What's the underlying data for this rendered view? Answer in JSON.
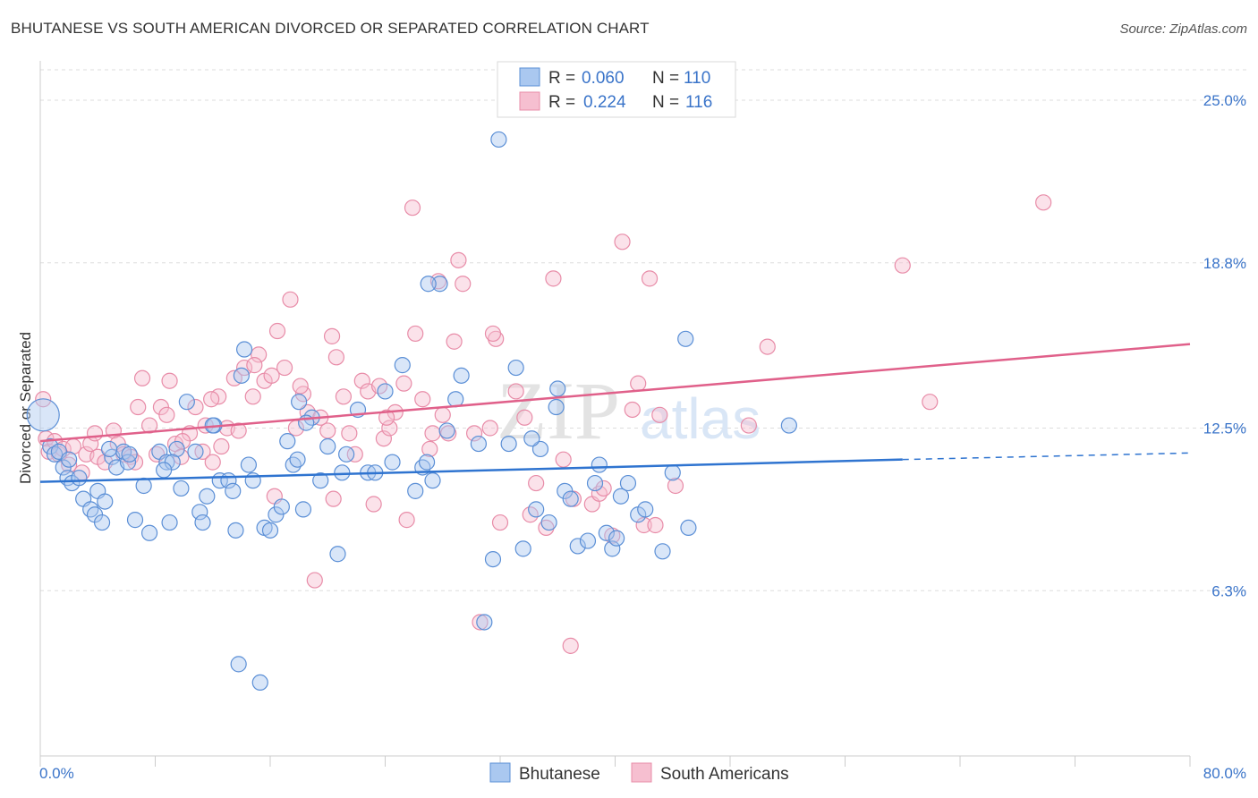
{
  "header": {
    "title": "BHUTANESE VS SOUTH AMERICAN DIVORCED OR SEPARATED CORRELATION CHART",
    "source": "Source: ZipAtlas.com"
  },
  "watermark": {
    "zip": "ZIP",
    "atlas": "atlas"
  },
  "colors": {
    "blue_fill": "#aac8f0",
    "blue_stroke": "#5b8fd6",
    "blue_line": "#2f74d0",
    "blue_text": "#3a74c9",
    "pink_fill": "#f6bfd0",
    "pink_stroke": "#e88ca8",
    "pink_line": "#e0608a",
    "axis_text": "#3a74c9",
    "grid": "#dddddd"
  },
  "stats": [
    {
      "r_label": "R =",
      "r_value": "0.060",
      "n_label": "N =",
      "n_value": "110"
    },
    {
      "r_label": "R =",
      "r_value": "0.224",
      "n_label": "N =",
      "n_value": "116"
    }
  ],
  "chart_data": {
    "type": "scatter",
    "title": "BHUTANESE VS SOUTH AMERICAN DIVORCED OR SEPARATED CORRELATION CHART",
    "xlabel": "",
    "ylabel": "Divorced or Separated",
    "xlim": [
      0,
      80
    ],
    "ylim": [
      0,
      26.5
    ],
    "x_tick_labels": [
      "0.0%",
      "80.0%"
    ],
    "y_ticks": [
      6.3,
      12.5,
      18.8,
      25.0
    ],
    "y_tick_labels": [
      "6.3%",
      "12.5%",
      "18.8%",
      "25.0%"
    ],
    "grid": true,
    "legend_position": "bottom",
    "series": [
      {
        "name": "Bhutanese",
        "color": "#aac8f0",
        "trend": {
          "x": [
            0,
            60
          ],
          "y": [
            10.45,
            11.3
          ],
          "dashed_to": [
            80,
            11.55
          ]
        },
        "points": [
          [
            0.2,
            13.0
          ],
          [
            0.7,
            11.8
          ],
          [
            1.0,
            11.5
          ],
          [
            1.3,
            11.6
          ],
          [
            1.6,
            11.0
          ],
          [
            1.9,
            10.6
          ],
          [
            2.2,
            10.4
          ],
          [
            2.7,
            10.6
          ],
          [
            3.0,
            9.8
          ],
          [
            3.5,
            9.4
          ],
          [
            3.8,
            9.2
          ],
          [
            4.0,
            10.1
          ],
          [
            4.3,
            8.9
          ],
          [
            4.5,
            9.7
          ],
          [
            5.0,
            11.4
          ],
          [
            5.3,
            11.0
          ],
          [
            5.8,
            11.6
          ],
          [
            6.1,
            11.2
          ],
          [
            6.6,
            9.0
          ],
          [
            7.2,
            10.3
          ],
          [
            7.6,
            8.5
          ],
          [
            8.3,
            11.6
          ],
          [
            8.8,
            11.2
          ],
          [
            9.0,
            8.9
          ],
          [
            9.5,
            11.7
          ],
          [
            9.8,
            10.2
          ],
          [
            10.2,
            13.5
          ],
          [
            10.8,
            11.6
          ],
          [
            11.1,
            9.3
          ],
          [
            11.3,
            8.9
          ],
          [
            11.6,
            9.9
          ],
          [
            12.1,
            12.6
          ],
          [
            12.5,
            10.5
          ],
          [
            13.1,
            10.5
          ],
          [
            13.4,
            10.1
          ],
          [
            13.6,
            8.6
          ],
          [
            14.0,
            14.5
          ],
          [
            14.2,
            15.5
          ],
          [
            14.5,
            11.1
          ],
          [
            14.8,
            10.5
          ],
          [
            15.6,
            8.7
          ],
          [
            16.0,
            8.6
          ],
          [
            16.4,
            9.2
          ],
          [
            16.8,
            9.5
          ],
          [
            17.2,
            12.0
          ],
          [
            17.6,
            11.1
          ],
          [
            18.0,
            13.5
          ],
          [
            18.3,
            9.4
          ],
          [
            18.9,
            12.9
          ],
          [
            19.5,
            10.5
          ],
          [
            20.0,
            11.8
          ],
          [
            20.7,
            7.7
          ],
          [
            21.3,
            11.5
          ],
          [
            22.1,
            13.2
          ],
          [
            22.8,
            10.8
          ],
          [
            23.3,
            10.8
          ],
          [
            24.0,
            13.9
          ],
          [
            24.5,
            11.2
          ],
          [
            25.2,
            14.9
          ],
          [
            26.1,
            10.1
          ],
          [
            26.6,
            11.0
          ],
          [
            27.3,
            10.5
          ],
          [
            27.8,
            18.0
          ],
          [
            28.3,
            12.4
          ],
          [
            28.9,
            13.6
          ],
          [
            29.3,
            14.5
          ],
          [
            30.5,
            11.9
          ],
          [
            30.9,
            5.1
          ],
          [
            31.5,
            7.5
          ],
          [
            31.9,
            23.5
          ],
          [
            32.6,
            11.9
          ],
          [
            33.1,
            14.8
          ],
          [
            33.6,
            7.9
          ],
          [
            34.5,
            9.4
          ],
          [
            34.8,
            11.7
          ],
          [
            35.4,
            8.9
          ],
          [
            35.9,
            13.3
          ],
          [
            36.0,
            14.0
          ],
          [
            36.5,
            10.1
          ],
          [
            36.9,
            9.8
          ],
          [
            37.4,
            8.0
          ],
          [
            38.1,
            8.2
          ],
          [
            38.6,
            10.4
          ],
          [
            38.9,
            11.1
          ],
          [
            39.4,
            8.5
          ],
          [
            39.8,
            7.9
          ],
          [
            40.1,
            8.3
          ],
          [
            40.4,
            9.9
          ],
          [
            40.9,
            10.4
          ],
          [
            41.6,
            9.2
          ],
          [
            42.1,
            9.4
          ],
          [
            43.3,
            7.8
          ],
          [
            44.0,
            10.8
          ],
          [
            44.9,
            15.9
          ],
          [
            45.1,
            8.7
          ],
          [
            52.1,
            12.6
          ],
          [
            13.8,
            3.5
          ],
          [
            15.3,
            2.8
          ],
          [
            12.0,
            12.6
          ],
          [
            18.5,
            12.7
          ],
          [
            27.0,
            18.0
          ],
          [
            21.0,
            10.8
          ],
          [
            9.2,
            11.2
          ],
          [
            6.2,
            11.5
          ],
          [
            2.0,
            11.3
          ],
          [
            4.8,
            11.7
          ],
          [
            17.9,
            11.3
          ],
          [
            26.9,
            11.2
          ],
          [
            34.2,
            12.1
          ],
          [
            8.6,
            10.9
          ]
        ]
      },
      {
        "name": "South Americans",
        "color": "#f6bfd0",
        "trend": {
          "x": [
            0,
            80
          ],
          "y": [
            12.0,
            15.7
          ]
        },
        "points": [
          [
            0.2,
            13.6
          ],
          [
            0.4,
            12.1
          ],
          [
            0.6,
            11.6
          ],
          [
            1.0,
            12.0
          ],
          [
            1.3,
            11.5
          ],
          [
            1.6,
            11.7
          ],
          [
            2.0,
            11.1
          ],
          [
            2.3,
            11.8
          ],
          [
            2.9,
            10.8
          ],
          [
            3.2,
            11.5
          ],
          [
            3.5,
            11.9
          ],
          [
            4.0,
            11.4
          ],
          [
            4.5,
            11.2
          ],
          [
            5.1,
            12.4
          ],
          [
            5.4,
            11.9
          ],
          [
            5.8,
            11.5
          ],
          [
            6.3,
            11.4
          ],
          [
            6.6,
            11.2
          ],
          [
            7.1,
            14.4
          ],
          [
            7.6,
            12.6
          ],
          [
            8.1,
            11.5
          ],
          [
            8.4,
            13.3
          ],
          [
            8.8,
            13.0
          ],
          [
            9.0,
            14.3
          ],
          [
            9.4,
            11.9
          ],
          [
            9.8,
            11.4
          ],
          [
            10.4,
            12.3
          ],
          [
            10.8,
            13.3
          ],
          [
            11.3,
            11.6
          ],
          [
            11.5,
            12.6
          ],
          [
            12.0,
            11.2
          ],
          [
            12.4,
            13.7
          ],
          [
            12.6,
            11.8
          ],
          [
            13.0,
            12.5
          ],
          [
            13.5,
            14.4
          ],
          [
            13.8,
            12.4
          ],
          [
            14.2,
            14.8
          ],
          [
            14.8,
            13.7
          ],
          [
            15.2,
            15.3
          ],
          [
            15.6,
            14.3
          ],
          [
            16.1,
            14.5
          ],
          [
            16.5,
            16.2
          ],
          [
            17.0,
            14.8
          ],
          [
            17.4,
            17.4
          ],
          [
            17.8,
            12.5
          ],
          [
            18.3,
            13.8
          ],
          [
            18.6,
            13.1
          ],
          [
            19.1,
            6.7
          ],
          [
            19.5,
            12.9
          ],
          [
            20.0,
            12.4
          ],
          [
            20.3,
            16.0
          ],
          [
            20.6,
            15.2
          ],
          [
            21.1,
            13.7
          ],
          [
            21.5,
            12.3
          ],
          [
            21.9,
            11.5
          ],
          [
            22.4,
            14.3
          ],
          [
            22.8,
            13.9
          ],
          [
            23.2,
            9.6
          ],
          [
            23.6,
            14.1
          ],
          [
            23.9,
            12.1
          ],
          [
            24.3,
            12.5
          ],
          [
            24.7,
            13.1
          ],
          [
            25.3,
            14.2
          ],
          [
            25.9,
            20.9
          ],
          [
            26.1,
            16.1
          ],
          [
            26.6,
            13.6
          ],
          [
            27.1,
            11.7
          ],
          [
            27.7,
            18.1
          ],
          [
            28.0,
            13.0
          ],
          [
            28.4,
            12.3
          ],
          [
            28.8,
            15.8
          ],
          [
            29.1,
            18.9
          ],
          [
            29.4,
            18.0
          ],
          [
            30.2,
            12.3
          ],
          [
            30.6,
            5.1
          ],
          [
            31.3,
            12.5
          ],
          [
            31.7,
            15.9
          ],
          [
            32.0,
            8.9
          ],
          [
            33.1,
            13.9
          ],
          [
            33.7,
            12.9
          ],
          [
            34.1,
            9.2
          ],
          [
            34.5,
            10.4
          ],
          [
            35.2,
            8.7
          ],
          [
            35.7,
            18.2
          ],
          [
            36.4,
            11.3
          ],
          [
            36.9,
            4.2
          ],
          [
            37.1,
            9.8
          ],
          [
            38.4,
            9.6
          ],
          [
            38.9,
            10.0
          ],
          [
            39.2,
            10.2
          ],
          [
            39.8,
            8.4
          ],
          [
            40.5,
            19.6
          ],
          [
            41.2,
            13.2
          ],
          [
            41.6,
            14.2
          ],
          [
            42.0,
            8.8
          ],
          [
            42.4,
            18.2
          ],
          [
            42.8,
            8.8
          ],
          [
            43.1,
            13.0
          ],
          [
            44.2,
            10.3
          ],
          [
            49.3,
            12.6
          ],
          [
            50.6,
            15.6
          ],
          [
            60.0,
            18.7
          ],
          [
            61.9,
            13.5
          ],
          [
            69.8,
            21.1
          ],
          [
            14.9,
            14.9
          ],
          [
            16.3,
            9.9
          ],
          [
            20.4,
            9.8
          ],
          [
            25.5,
            9.0
          ],
          [
            11.9,
            13.6
          ],
          [
            9.9,
            12.0
          ],
          [
            3.8,
            12.3
          ],
          [
            24.1,
            12.9
          ],
          [
            31.5,
            16.1
          ],
          [
            27.3,
            12.3
          ],
          [
            6.8,
            13.3
          ],
          [
            18.1,
            14.1
          ]
        ]
      }
    ]
  },
  "legend": {
    "items": [
      {
        "label": "Bhutanese"
      },
      {
        "label": "South Americans"
      }
    ]
  }
}
